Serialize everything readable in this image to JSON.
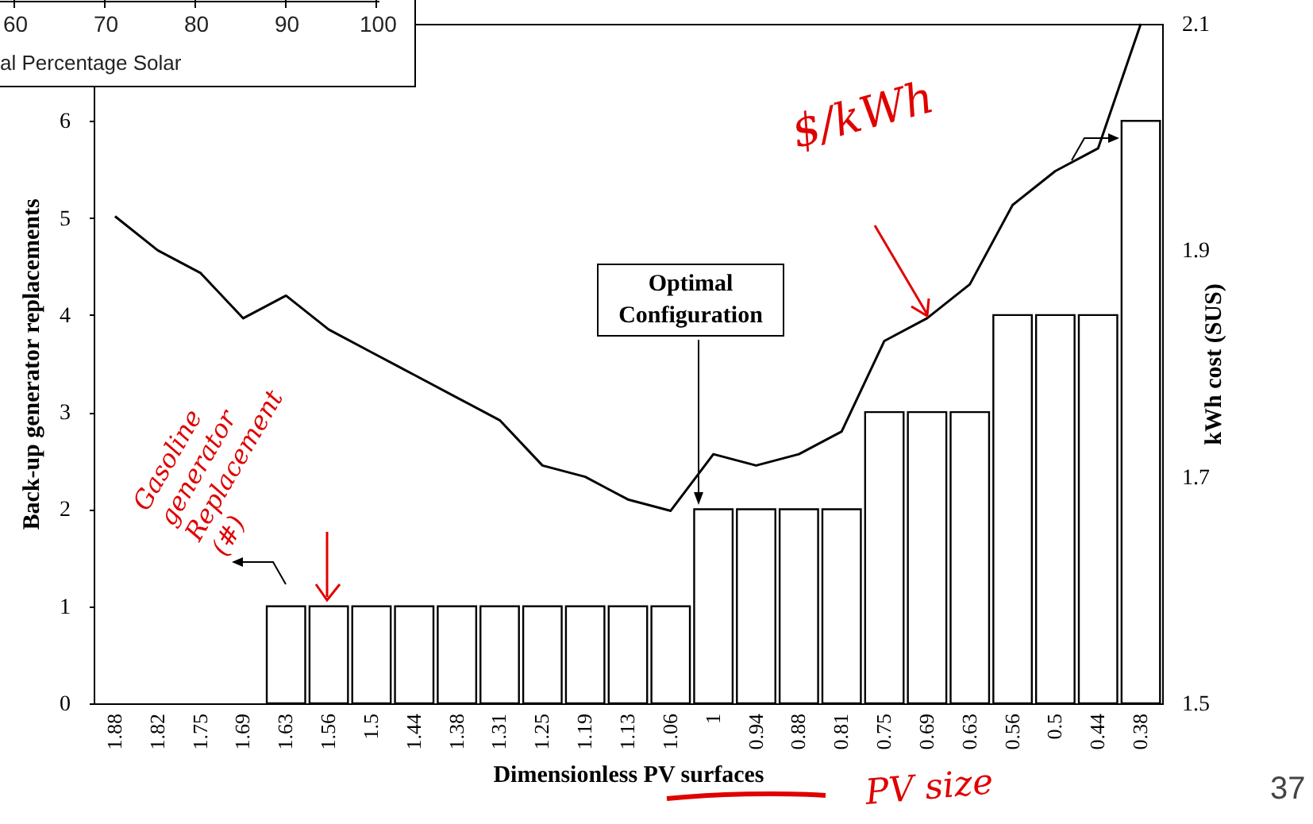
{
  "chart_data": {
    "type": "bar",
    "xlabel": "Dimensionless PV surfaces",
    "ylabel": "Back-up generator replacements",
    "y2label": "kWh cost (SUS)",
    "categories": [
      "1.88",
      "1.82",
      "1.75",
      "1.69",
      "1.63",
      "1.56",
      "1.5",
      "1.44",
      "1.38",
      "1.31",
      "1.25",
      "1.19",
      "1.13",
      "1.06",
      "1",
      "0.94",
      "0.88",
      "0.81",
      "0.75",
      "0.69",
      "0.63",
      "0.56",
      "0.5",
      "0.44",
      "0.38"
    ],
    "series": [
      {
        "color": "#ffffff",
        "values": [
          0,
          0,
          0,
          0,
          1,
          1,
          1,
          1,
          1,
          1,
          1,
          1,
          1,
          1,
          2,
          2,
          2,
          2,
          3,
          3,
          3,
          4,
          4,
          4,
          6
        ]
      },
      {
        "type": "line",
        "axis": "y2",
        "color": "#000000",
        "values": [
          1.93,
          1.9,
          1.88,
          1.84,
          1.86,
          1.83,
          1.81,
          1.79,
          1.77,
          1.75,
          1.71,
          1.7,
          1.68,
          1.67,
          1.72,
          1.71,
          1.72,
          1.74,
          1.82,
          1.84,
          1.87,
          1.94,
          1.97,
          1.99,
          2.1
        ]
      }
    ],
    "ylim": [
      0,
      7
    ],
    "yticks": [
      0,
      1,
      2,
      3,
      4,
      5,
      6
    ],
    "y2lim": [
      1.5,
      2.1
    ],
    "y2ticks": [
      1.5,
      1.7,
      1.9,
      2.1
    ],
    "grid": false,
    "annotations": [
      "Optimal Configuration",
      "$/kWh",
      "Gasoline generator Replacement (#)",
      "PV size",
      "37",
      "60",
      "70",
      "80",
      "90",
      "100",
      "al Percentage Solar"
    ]
  }
}
